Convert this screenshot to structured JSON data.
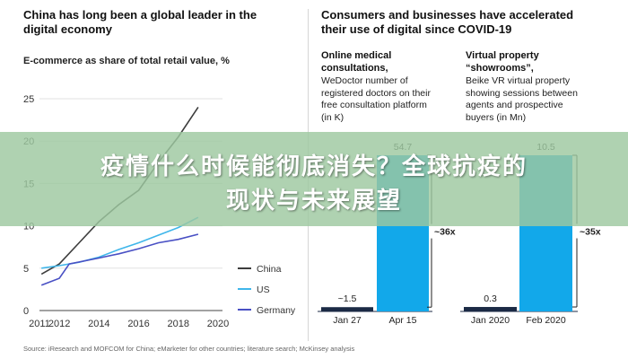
{
  "left": {
    "title_line1": "China has long been a global leader in the",
    "title_line2": "digital economy",
    "subtitle": "E-commerce as share of total retail value, %"
  },
  "right": {
    "title_line1": "Consumers and businesses have accelerated",
    "title_line2": "their use of digital since COVID-19",
    "panel1": {
      "title_line1": "Online medical",
      "title_line2": "consultations,",
      "desc": [
        "WeDoctor number of",
        "registered doctors on their",
        "free consultation platform",
        "(in K)"
      ]
    },
    "panel2": {
      "title_line1": "Virtual property",
      "title_line2": "“showrooms”,",
      "desc": [
        "Beike VR virtual property",
        "showing sessions between",
        "agents and prospective",
        "buyers (in Mn)"
      ]
    }
  },
  "source": "Source: iResearch and MOFCOM for China; eMarketer for other countries; literature search; McKinsey analysis",
  "overlay": {
    "line1": "疫情什么时候能彻底消失？全球抗疫的",
    "line2": "现状与未来展望"
  },
  "colors": {
    "china": "#3d3d3d",
    "us": "#3fb6ea",
    "germany": "#4950c4",
    "bar_blue": "#12a8ea",
    "bar_dark": "#1b2a45",
    "overlay": "#9ec8a0"
  },
  "chart_data": [
    {
      "type": "line",
      "title": "E-commerce as share of total retail value, %",
      "xlim": [
        2011,
        2020
      ],
      "ylim": [
        0,
        25
      ],
      "xticks": [
        "2011",
        "2012",
        "2014",
        "2016",
        "2018",
        "2020"
      ],
      "xtick_values": [
        2011,
        2012,
        2014,
        2016,
        2018,
        2020
      ],
      "yticks": [
        "0",
        "5",
        "10",
        "15",
        "20",
        "25"
      ],
      "ytick_values": [
        0,
        5,
        10,
        15,
        20,
        25
      ],
      "legend_position": "right",
      "series": [
        {
          "name": "China",
          "color": "#3d3d3d",
          "points": [
            [
              2011.1,
              4.3
            ],
            [
              2012,
              5.5
            ],
            [
              2013,
              8
            ],
            [
              2014,
              10.5
            ],
            [
              2015,
              12.5
            ],
            [
              2016,
              14.2
            ],
            [
              2017,
              17.5
            ],
            [
              2018,
              20.5
            ],
            [
              2019,
              24
            ]
          ]
        },
        {
          "name": "US",
          "color": "#3fb6ea",
          "points": [
            [
              2011.1,
              5
            ],
            [
              2012,
              5.3
            ],
            [
              2013,
              5.7
            ],
            [
              2014,
              6.3
            ],
            [
              2015,
              7.2
            ],
            [
              2016,
              8
            ],
            [
              2017,
              8.9
            ],
            [
              2018,
              9.8
            ],
            [
              2019,
              11
            ]
          ]
        },
        {
          "name": "Germany",
          "color": "#4950c4",
          "points": [
            [
              2011.1,
              3
            ],
            [
              2012,
              3.8
            ],
            [
              2012.5,
              5.5
            ],
            [
              2014,
              6.2
            ],
            [
              2015,
              6.7
            ],
            [
              2016,
              7.3
            ],
            [
              2017,
              8
            ],
            [
              2018,
              8.4
            ],
            [
              2019,
              9
            ]
          ]
        }
      ]
    },
    {
      "type": "bar",
      "title": "Online medical consultations",
      "categories": [
        "Jan 27",
        "Apr 15"
      ],
      "values": [
        1.5,
        54.7
      ],
      "data_labels": [
        "~1.5",
        "54.7"
      ],
      "annotation": "~36x"
    },
    {
      "type": "bar",
      "title": "Virtual property “showrooms”",
      "categories": [
        "Jan 2020",
        "Feb 2020"
      ],
      "values": [
        0.3,
        10.5
      ],
      "data_labels": [
        "0.3",
        "10.5"
      ],
      "annotation": "~35x"
    }
  ]
}
